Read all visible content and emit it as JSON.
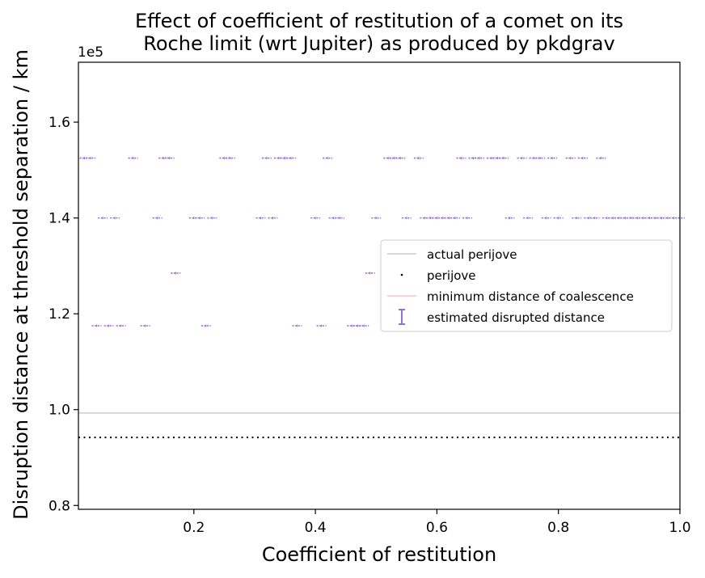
{
  "chart_data": {
    "type": "scatter",
    "title": "Effect of coefficient of restitution of a comet on its\nRoche limit (wrt Jupiter) as produced by pkdgrav",
    "xlabel": "Coefficient of restitution",
    "ylabel": "Disruption distance at threshold separation / km",
    "offset_label": "1e5",
    "xlim": [
      0.01,
      1.0
    ],
    "ylim": [
      79200,
      172500
    ],
    "xticks": [
      0.2,
      0.4,
      0.6,
      0.8,
      1.0
    ],
    "xtick_labels": [
      "0.2",
      "0.4",
      "0.6",
      "0.8",
      "1.0"
    ],
    "yticks": [
      80000,
      100000,
      120000,
      140000,
      160000
    ],
    "ytick_labels": [
      "0.8",
      "1.0",
      "1.2",
      "1.4",
      "1.6"
    ],
    "grid": false,
    "legend_position": "center-right",
    "legend": [
      {
        "label": "actual perijove",
        "color": "#cccccc",
        "style": "line"
      },
      {
        "label": "perijove",
        "color": "#000000",
        "style": "dot"
      },
      {
        "label": "minimum distance of coalescence",
        "color": "#ffc0cb",
        "style": "line"
      },
      {
        "label": "estimated disrupted distance",
        "color": "#9370db",
        "style": "errorbar"
      }
    ],
    "actual_perijove": 99300,
    "perijove": 94200,
    "series": [
      {
        "name": "estimated disrupted distance",
        "color": "#9370db",
        "points": [
          [
            0.02,
            152500
          ],
          [
            0.03,
            152500
          ],
          [
            0.04,
            117500
          ],
          [
            0.05,
            140000
          ],
          [
            0.06,
            117500
          ],
          [
            0.07,
            140000
          ],
          [
            0.08,
            117500
          ],
          [
            0.1,
            152500
          ],
          [
            0.12,
            117500
          ],
          [
            0.14,
            140000
          ],
          [
            0.15,
            152500
          ],
          [
            0.16,
            152500
          ],
          [
            0.17,
            128500
          ],
          [
            0.2,
            140000
          ],
          [
            0.21,
            140000
          ],
          [
            0.22,
            117500
          ],
          [
            0.23,
            140000
          ],
          [
            0.25,
            152500
          ],
          [
            0.26,
            152500
          ],
          [
            0.31,
            140000
          ],
          [
            0.32,
            152500
          ],
          [
            0.33,
            140000
          ],
          [
            0.34,
            152500
          ],
          [
            0.35,
            152500
          ],
          [
            0.36,
            152500
          ],
          [
            0.37,
            117500
          ],
          [
            0.4,
            140000
          ],
          [
            0.41,
            117500
          ],
          [
            0.42,
            152500
          ],
          [
            0.43,
            140000
          ],
          [
            0.44,
            140000
          ],
          [
            0.46,
            117500
          ],
          [
            0.47,
            117500
          ],
          [
            0.48,
            117500
          ],
          [
            0.49,
            128500
          ],
          [
            0.5,
            140000
          ],
          [
            0.52,
            152500
          ],
          [
            0.53,
            152500
          ],
          [
            0.54,
            152500
          ],
          [
            0.55,
            140000
          ],
          [
            0.57,
            152500
          ],
          [
            0.58,
            140000
          ],
          [
            0.59,
            140000
          ],
          [
            0.6,
            140000
          ],
          [
            0.61,
            140000
          ],
          [
            0.62,
            140000
          ],
          [
            0.63,
            140000
          ],
          [
            0.64,
            152500
          ],
          [
            0.65,
            140000
          ],
          [
            0.66,
            152500
          ],
          [
            0.67,
            152500
          ],
          [
            0.69,
            152500
          ],
          [
            0.7,
            152500
          ],
          [
            0.71,
            152500
          ],
          [
            0.72,
            140000
          ],
          [
            0.74,
            152500
          ],
          [
            0.75,
            140000
          ],
          [
            0.76,
            152500
          ],
          [
            0.77,
            152500
          ],
          [
            0.78,
            140000
          ],
          [
            0.79,
            152500
          ],
          [
            0.8,
            140000
          ],
          [
            0.82,
            152500
          ],
          [
            0.83,
            140000
          ],
          [
            0.84,
            152500
          ],
          [
            0.85,
            140000
          ],
          [
            0.86,
            140000
          ],
          [
            0.87,
            152500
          ],
          [
            0.88,
            140000
          ],
          [
            0.89,
            140000
          ],
          [
            0.9,
            140000
          ],
          [
            0.91,
            140000
          ],
          [
            0.92,
            140000
          ],
          [
            0.93,
            140000
          ],
          [
            0.94,
            140000
          ],
          [
            0.95,
            140000
          ],
          [
            0.96,
            140000
          ],
          [
            0.97,
            140000
          ],
          [
            0.98,
            140000
          ],
          [
            0.99,
            140000
          ],
          [
            1.0,
            140000
          ]
        ]
      }
    ]
  }
}
